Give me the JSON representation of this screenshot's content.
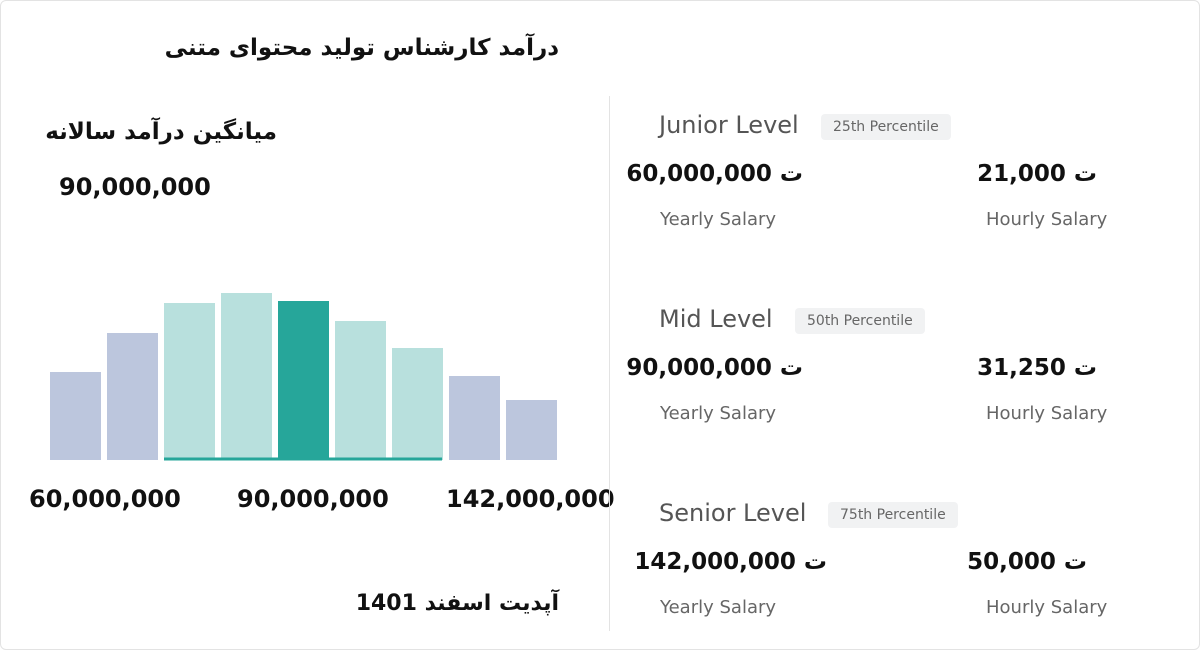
{
  "title": "درآمد کارشناس تولید محتوای متنی",
  "average": {
    "label": "میانگین درآمد سالانه",
    "value": "90,000,000"
  },
  "histogram": {
    "type": "bar",
    "values": [
      88,
      127,
      157,
      167,
      159,
      139,
      112,
      84,
      60
    ],
    "colors": [
      "#bcc6dd",
      "#bcc6dd",
      "#b8e0dd",
      "#b8e0dd",
      "#26a69a",
      "#b8e0dd",
      "#b8e0dd",
      "#bcc6dd",
      "#bcc6dd"
    ],
    "axis_labels": [
      "60,000,000",
      "90,000,000",
      "142,000,000"
    ]
  },
  "updated": "آپدیت  اسفند 1401",
  "levels": [
    {
      "name": "Junior Level",
      "percentile": "25th Percentile",
      "yearly": "60,000,000 ت",
      "yearly_label": "Yearly Salary",
      "hourly": "21,000 ت",
      "hourly_label": "Hourly Salary"
    },
    {
      "name": "Mid Level",
      "percentile": "50th Percentile",
      "yearly": "90,000,000 ت",
      "yearly_label": "Yearly Salary",
      "hourly": "31,250 ت",
      "hourly_label": "Hourly Salary"
    },
    {
      "name": "Senior Level",
      "percentile": "75th Percentile",
      "yearly": "142,000,000 ت",
      "yearly_label": "Yearly Salary",
      "hourly": "50,000 ت",
      "hourly_label": "Hourly Salary"
    }
  ]
}
